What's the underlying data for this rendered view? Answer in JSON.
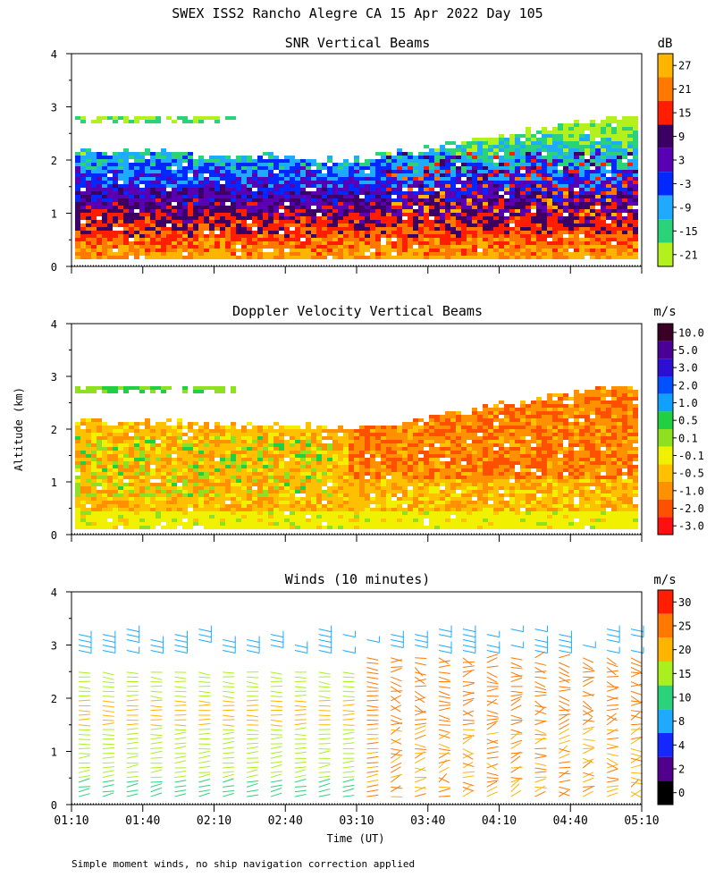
{
  "title": "SWEX ISS2 Rancho Alegre CA  15 Apr 2022 Day 105",
  "footnote": "Simple moment winds, no ship navigation correction applied",
  "colors": {
    "dotted_base": "#000000",
    "frame": "#000000"
  },
  "chart_data": [
    {
      "type": "heatmap",
      "title": "SNR Vertical Beams",
      "ylabel": "",
      "ylim": [
        0,
        4
      ],
      "yticks": [
        "0",
        "1",
        "2",
        "3",
        "4"
      ],
      "xrange_minutes": [
        70,
        310
      ],
      "colorbar": {
        "unit": "dB",
        "labels": [
          "27",
          "21",
          "15",
          "9",
          "3",
          "-3",
          "-9",
          "-15",
          "-21"
        ],
        "colors": [
          "#ffb400",
          "#ff7800",
          "#ff1e00",
          "#3c0064",
          "#5a00b4",
          "#0028ff",
          "#1eaaff",
          "#2ad27a",
          "#b4f01e"
        ]
      }
    },
    {
      "type": "heatmap",
      "title": "Doppler Velocity Vertical Beams",
      "ylabel": "Altitude (km)",
      "ylim": [
        0,
        4
      ],
      "yticks": [
        "0",
        "1",
        "2",
        "3",
        "4"
      ],
      "xrange_minutes": [
        70,
        310
      ],
      "colorbar": {
        "unit": "m/s",
        "labels": [
          "10.0",
          "5.0",
          "3.0",
          "2.0",
          "1.0",
          "0.5",
          "0.1",
          "-0.1",
          "-0.5",
          "-1.0",
          "-2.0",
          "-3.0"
        ],
        "colors": [
          "#3a0026",
          "#4a0096",
          "#2c0fd2",
          "#0050ff",
          "#10a0ff",
          "#20d040",
          "#8ee020",
          "#f0f000",
          "#ffc000",
          "#ff9000",
          "#ff5000",
          "#ff1010"
        ]
      }
    },
    {
      "type": "wind_barbs",
      "title": "Winds (10 minutes)",
      "xlabel": "Time (UT)",
      "ylim": [
        0,
        4
      ],
      "yticks": [
        "0",
        "1",
        "2",
        "3",
        "4"
      ],
      "xticks": [
        "01:10",
        "01:40",
        "02:10",
        "02:40",
        "03:10",
        "03:40",
        "04:10",
        "04:40",
        "05:10"
      ],
      "xrange_minutes": [
        70,
        310
      ],
      "colorbar": {
        "unit": "m/s",
        "labels": [
          "30",
          "25",
          "20",
          "15",
          "10",
          "8",
          "4",
          "2",
          "0"
        ],
        "colors": [
          "#ff1e00",
          "#ff7800",
          "#ffb400",
          "#aaf01e",
          "#2ad27a",
          "#1eaaff",
          "#1428ff",
          "#50008c",
          "#000000"
        ]
      }
    }
  ]
}
